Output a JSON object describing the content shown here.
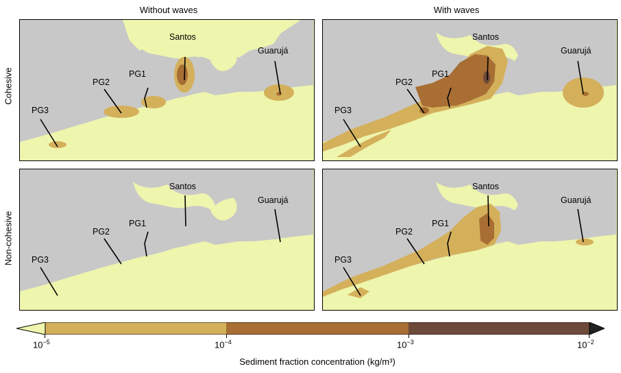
{
  "columns": [
    "Without waves",
    "With waves"
  ],
  "rows": [
    "Cohesive",
    "Non-cohesive"
  ],
  "sites": [
    "Santos",
    "Guarujá",
    "PG1",
    "PG2",
    "PG3"
  ],
  "colorbar": {
    "ticks": [
      "10",
      "10",
      "10",
      "10"
    ],
    "exponents": [
      "−5",
      "−4",
      "−3",
      "−2"
    ],
    "label": "Sediment fraction concentration (kg/m³)",
    "colors": [
      "#eef5ad",
      "#d4b05b",
      "#a86e34",
      "#6e4a3a",
      "#222222"
    ]
  },
  "colors": {
    "land": "#c8c8c8",
    "water": "#eef5ad",
    "level1": "#d4b05b",
    "level2": "#a86e34",
    "level3": "#6e4a3a"
  }
}
